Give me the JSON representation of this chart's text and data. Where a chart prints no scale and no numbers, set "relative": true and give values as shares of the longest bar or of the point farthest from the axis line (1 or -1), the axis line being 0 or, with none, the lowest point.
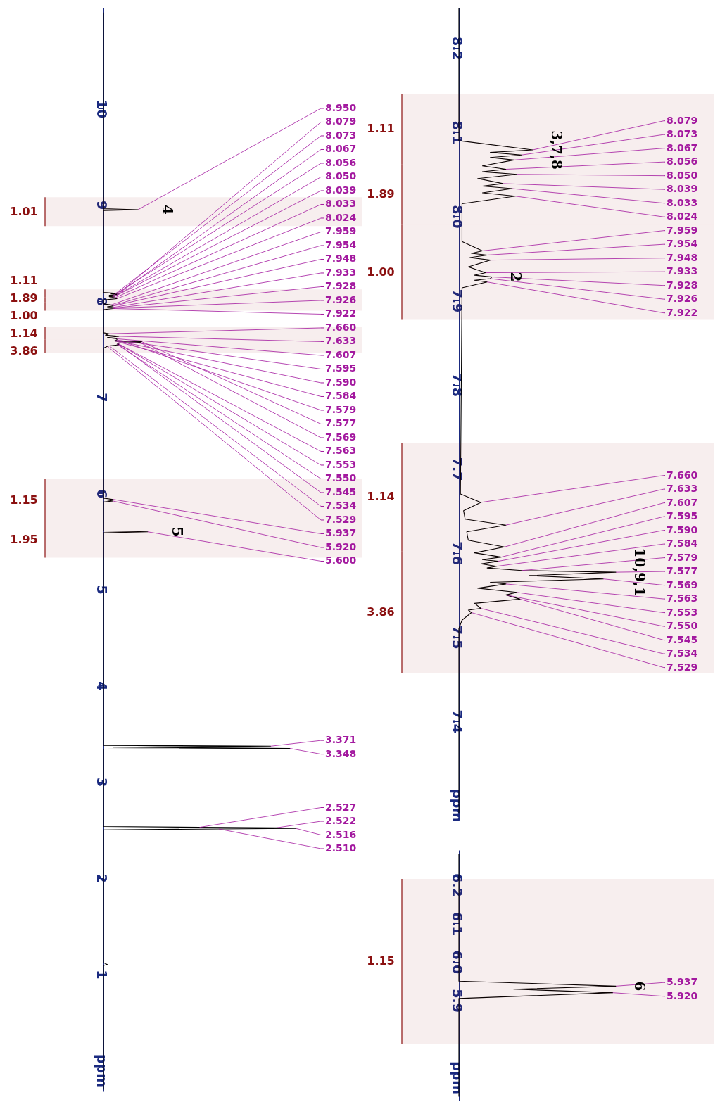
{
  "chart_data": [
    {
      "type": "line",
      "orientation": "horizontal",
      "relative": true,
      "color": "#000000",
      "line_style": "solid",
      "marker": "none",
      "x": [
        11.0,
        8.96,
        8.95,
        8.94,
        8.09,
        8.079,
        8.076,
        8.073,
        8.067,
        8.06,
        8.056,
        8.05,
        8.045,
        8.039,
        8.033,
        8.024,
        8.01,
        7.97,
        7.959,
        7.954,
        7.948,
        7.94,
        7.933,
        7.928,
        7.926,
        7.922,
        7.91,
        7.67,
        7.66,
        7.645,
        7.633,
        7.62,
        7.607,
        7.595,
        7.59,
        7.584,
        7.579,
        7.577,
        7.569,
        7.563,
        7.553,
        7.55,
        7.545,
        7.534,
        7.529,
        7.51,
        5.95,
        5.937,
        5.929,
        5.92,
        5.91,
        5.61,
        5.6,
        5.59,
        3.38,
        3.371,
        3.36,
        3.348,
        3.34,
        2.535,
        2.527,
        2.522,
        2.516,
        2.51,
        2.5,
        1.12,
        1.1,
        1.09,
        -0.2
      ],
      "values": [
        0,
        0,
        0.18,
        0,
        0,
        0.08,
        0.04,
        0.06,
        0.07,
        0.03,
        0.05,
        0.06,
        0.03,
        0.05,
        0.06,
        0.07,
        0,
        0,
        0.04,
        0.05,
        0.05,
        0.02,
        0.05,
        0.06,
        0.06,
        0.05,
        0,
        0,
        0.03,
        0.01,
        0.08,
        0.02,
        0.07,
        0.07,
        0.06,
        0.06,
        0.1,
        0.2,
        0.19,
        0.07,
        0.08,
        0.07,
        0.08,
        0.03,
        0.02,
        0,
        0,
        0.05,
        0.02,
        0.05,
        0,
        0,
        0.23,
        0,
        0,
        0.87,
        0.05,
        0.97,
        0,
        0,
        0.5,
        0.9,
        1.0,
        0.6,
        0,
        0,
        0.02,
        0,
        0
      ],
      "ylim": [
        -0.22,
        11.05
      ],
      "yticks": [
        1,
        2,
        3,
        4,
        5,
        6,
        7,
        8,
        9,
        10,
        {
          "value": 0,
          "label": "ppm"
        }
      ],
      "bands": [
        {
          "axis": "y",
          "from": 9.08,
          "to": 8.78,
          "label": "1.01",
          "color": "#8b1010"
        },
        {
          "axis": "y",
          "from": 8.12,
          "to": 8.04,
          "label": "1.11",
          "color": "#8b1010"
        },
        {
          "axis": "y",
          "from": 8.04,
          "to": 7.99,
          "label": "1.89",
          "color": "#8b1010"
        },
        {
          "axis": "y",
          "from": 7.99,
          "to": 7.9,
          "label": "1.00",
          "color": "#8b1010"
        },
        {
          "axis": "y",
          "from": 7.73,
          "to": 7.6,
          "label": "1.14",
          "color": "#8b1010"
        },
        {
          "axis": "y",
          "from": 7.6,
          "to": 7.46,
          "label": "3.86",
          "color": "#8b1010"
        },
        {
          "axis": "y",
          "from": 6.15,
          "to": 5.7,
          "label": "1.15",
          "color": "#8b1010"
        },
        {
          "axis": "y",
          "from": 5.7,
          "to": 5.33,
          "label": "1.95",
          "color": "#8b1010"
        }
      ],
      "annotations": [
        {
          "text": "8.950",
          "y": 8.95,
          "x": 0.18
        },
        {
          "text": "8.079",
          "y": 8.079,
          "x": 0.08
        },
        {
          "text": "8.073",
          "y": 8.073,
          "x": 0.06
        },
        {
          "text": "8.067",
          "y": 8.067,
          "x": 0.07
        },
        {
          "text": "8.056",
          "y": 8.056,
          "x": 0.05
        },
        {
          "text": "8.050",
          "y": 8.05,
          "x": 0.06
        },
        {
          "text": "8.039",
          "y": 8.039,
          "x": 0.05
        },
        {
          "text": "8.033",
          "y": 8.033,
          "x": 0.06
        },
        {
          "text": "8.024",
          "y": 8.024,
          "x": 0.07
        },
        {
          "text": "7.959",
          "y": 7.959,
          "x": 0.04
        },
        {
          "text": "7.954",
          "y": 7.954,
          "x": 0.05
        },
        {
          "text": "7.948",
          "y": 7.948,
          "x": 0.05
        },
        {
          "text": "7.933",
          "y": 7.933,
          "x": 0.05
        },
        {
          "text": "7.928",
          "y": 7.928,
          "x": 0.06
        },
        {
          "text": "7.926",
          "y": 7.926,
          "x": 0.06
        },
        {
          "text": "7.922",
          "y": 7.922,
          "x": 0.05
        },
        {
          "text": "7.660",
          "y": 7.66,
          "x": 0.03
        },
        {
          "text": "7.633",
          "y": 7.633,
          "x": 0.08
        },
        {
          "text": "7.607",
          "y": 7.607,
          "x": 0.07
        },
        {
          "text": "7.595",
          "y": 7.595,
          "x": 0.07
        },
        {
          "text": "7.590",
          "y": 7.59,
          "x": 0.06
        },
        {
          "text": "7.584",
          "y": 7.584,
          "x": 0.06
        },
        {
          "text": "7.579",
          "y": 7.579,
          "x": 0.1
        },
        {
          "text": "7.577",
          "y": 7.577,
          "x": 0.2
        },
        {
          "text": "7.569",
          "y": 7.569,
          "x": 0.19
        },
        {
          "text": "7.563",
          "y": 7.563,
          "x": 0.07
        },
        {
          "text": "7.553",
          "y": 7.553,
          "x": 0.08
        },
        {
          "text": "7.550",
          "y": 7.55,
          "x": 0.07
        },
        {
          "text": "7.545",
          "y": 7.545,
          "x": 0.08
        },
        {
          "text": "7.534",
          "y": 7.534,
          "x": 0.03
        },
        {
          "text": "7.529",
          "y": 7.529,
          "x": 0.02
        },
        {
          "text": "5.937",
          "y": 5.937,
          "x": 0.05
        },
        {
          "text": "5.920",
          "y": 5.92,
          "x": 0.05
        },
        {
          "text": "5.600",
          "y": 5.6,
          "x": 0.23
        },
        {
          "text": "3.371",
          "y": 3.371,
          "x": 0.87
        },
        {
          "text": "3.348",
          "y": 3.348,
          "x": 0.97
        },
        {
          "text": "2.527",
          "y": 2.527,
          "x": 0.5
        },
        {
          "text": "2.522",
          "y": 2.522,
          "x": 0.9
        },
        {
          "text": "2.516",
          "y": 2.516,
          "x": 1.0
        },
        {
          "text": "2.510",
          "y": 2.51,
          "x": 0.6
        },
        {
          "text": "4",
          "x": 0.18,
          "y": 8.95
        },
        {
          "text": "5",
          "x": 0.23,
          "y": 5.6
        }
      ]
    },
    {
      "type": "line",
      "orientation": "horizontal",
      "relative": true,
      "color": "#000000",
      "line_style": "solid",
      "marker": "none",
      "x": [
        8.248,
        8.09,
        8.079,
        8.076,
        8.073,
        8.07,
        8.067,
        8.06,
        8.056,
        8.053,
        8.05,
        8.045,
        8.039,
        8.036,
        8.033,
        8.028,
        8.024,
        8.015,
        7.97,
        7.959,
        7.956,
        7.954,
        7.951,
        7.948,
        7.94,
        7.933,
        7.93,
        7.928,
        7.926,
        7.924,
        7.922,
        7.915,
        7.67,
        7.66,
        7.65,
        7.64,
        7.633,
        7.625,
        7.615,
        7.607,
        7.6,
        7.595,
        7.592,
        7.59,
        7.587,
        7.584,
        7.582,
        7.579,
        7.577,
        7.573,
        7.569,
        7.565,
        7.563,
        7.558,
        7.553,
        7.55,
        7.545,
        7.54,
        7.534,
        7.532,
        7.529,
        7.52,
        7.51,
        7.29
      ],
      "values": [
        0,
        0,
        0.47,
        0.2,
        0.4,
        0.2,
        0.35,
        0.15,
        0.3,
        0.15,
        0.37,
        0.12,
        0.28,
        0.15,
        0.34,
        0.15,
        0.36,
        0.02,
        0.02,
        0.15,
        0.08,
        0.18,
        0.07,
        0.2,
        0.06,
        0.17,
        0.1,
        0.21,
        0.2,
        0.1,
        0.18,
        0.02,
        0.01,
        0.14,
        0.03,
        0.04,
        0.3,
        0.05,
        0.06,
        0.29,
        0.1,
        0.27,
        0.15,
        0.25,
        0.14,
        0.24,
        0.18,
        0.4,
        1.0,
        0.45,
        0.92,
        0.2,
        0.3,
        0.12,
        0.37,
        0.3,
        0.39,
        0.1,
        0.14,
        0.06,
        0.08,
        0.02,
        0,
        0
      ],
      "ylim": [
        7.286,
        8.248
      ],
      "yticks": [
        8.2,
        8.1,
        {
          "value": 8.0,
          "label": "8.0"
        },
        7.9,
        7.8,
        7.7,
        7.6,
        7.5,
        7.4,
        {
          "value": 7.3,
          "label": "ppm"
        }
      ],
      "bands": [
        {
          "axis": "y",
          "from": 8.146,
          "to": 8.062,
          "label": "1.11",
          "color": "#8b1010"
        },
        {
          "axis": "y",
          "from": 8.062,
          "to": 7.99,
          "label": "1.89",
          "color": "#8b1010"
        },
        {
          "axis": "y",
          "from": 7.99,
          "to": 7.877,
          "label": "1.00",
          "color": "#8b1010"
        },
        {
          "axis": "y",
          "from": 7.731,
          "to": 7.602,
          "label": "1.14",
          "color": "#8b1010"
        },
        {
          "axis": "y",
          "from": 7.602,
          "to": 7.457,
          "label": "3.86",
          "color": "#8b1010"
        }
      ],
      "annotations": [
        {
          "text": "8.079",
          "y": 8.079,
          "x": 0.47
        },
        {
          "text": "8.073",
          "y": 8.073,
          "x": 0.4
        },
        {
          "text": "8.067",
          "y": 8.067,
          "x": 0.35
        },
        {
          "text": "8.056",
          "y": 8.056,
          "x": 0.3
        },
        {
          "text": "8.050",
          "y": 8.05,
          "x": 0.37
        },
        {
          "text": "8.039",
          "y": 8.039,
          "x": 0.28
        },
        {
          "text": "8.033",
          "y": 8.033,
          "x": 0.34
        },
        {
          "text": "8.024",
          "y": 8.024,
          "x": 0.36
        },
        {
          "text": "7.959",
          "y": 7.959,
          "x": 0.15
        },
        {
          "text": "7.954",
          "y": 7.954,
          "x": 0.18
        },
        {
          "text": "7.948",
          "y": 7.948,
          "x": 0.2
        },
        {
          "text": "7.933",
          "y": 7.933,
          "x": 0.17
        },
        {
          "text": "7.928",
          "y": 7.928,
          "x": 0.21
        },
        {
          "text": "7.926",
          "y": 7.926,
          "x": 0.2
        },
        {
          "text": "7.922",
          "y": 7.922,
          "x": 0.18
        },
        {
          "text": "7.660",
          "y": 7.66,
          "x": 0.14
        },
        {
          "text": "7.633",
          "y": 7.633,
          "x": 0.3
        },
        {
          "text": "7.607",
          "y": 7.607,
          "x": 0.29
        },
        {
          "text": "7.595",
          "y": 7.595,
          "x": 0.27
        },
        {
          "text": "7.590",
          "y": 7.59,
          "x": 0.25
        },
        {
          "text": "7.584",
          "y": 7.584,
          "x": 0.24
        },
        {
          "text": "7.579",
          "y": 7.579,
          "x": 0.4
        },
        {
          "text": "7.577",
          "y": 7.577,
          "x": 1.0
        },
        {
          "text": "7.569",
          "y": 7.569,
          "x": 0.92
        },
        {
          "text": "7.563",
          "y": 7.563,
          "x": 0.3
        },
        {
          "text": "7.553",
          "y": 7.553,
          "x": 0.37
        },
        {
          "text": "7.550",
          "y": 7.55,
          "x": 0.3
        },
        {
          "text": "7.545",
          "y": 7.545,
          "x": 0.39
        },
        {
          "text": "7.534",
          "y": 7.534,
          "x": 0.14
        },
        {
          "text": "7.529",
          "y": 7.529,
          "x": 0.08
        },
        {
          "text": "3,7,8",
          "x": 0.47,
          "y": 8.079
        },
        {
          "text": "2",
          "x": 0.21,
          "y": 7.928
        },
        {
          "text": "10,9,1",
          "x": 1.0,
          "y": 7.577
        }
      ]
    },
    {
      "type": "line",
      "orientation": "horizontal",
      "relative": true,
      "color": "#000000",
      "line_style": "solid",
      "marker": "none",
      "x": [
        6.28,
        5.95,
        5.937,
        5.929,
        5.92,
        5.905,
        5.65
      ],
      "values": [
        0,
        0,
        1.0,
        0.35,
        0.98,
        0,
        0
      ],
      "ylim": [
        5.64,
        6.29
      ],
      "yticks": [
        6.2,
        6.1,
        {
          "value": 6.0,
          "label": "6.0"
        },
        5.9,
        {
          "value": 5.7,
          "label": "ppm"
        }
      ],
      "bands": [
        {
          "axis": "y",
          "from": 6.215,
          "to": 5.787,
          "label": "1.15",
          "color": "#8b1010"
        }
      ],
      "annotations": [
        {
          "text": "5.937",
          "y": 5.937,
          "x": 1.0
        },
        {
          "text": "5.920",
          "y": 5.92,
          "x": 0.98
        },
        {
          "text": "6",
          "x": 1.0,
          "y": 5.937
        }
      ]
    }
  ]
}
